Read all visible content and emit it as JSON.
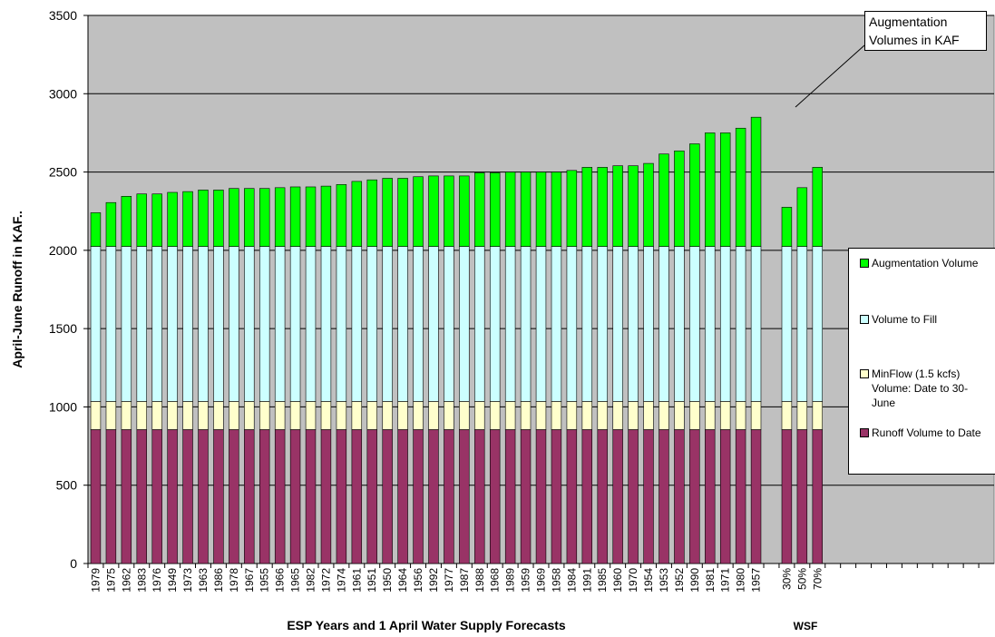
{
  "chart_data": {
    "type": "stacked_bar",
    "y_label": "April-June Runoff in KAF..",
    "x_label": "ESP Years and 1 April Water Supply Forecasts",
    "x_label_2": "WSF",
    "annotation": "Augmentation Volumes in KAF",
    "categories": [
      "1979",
      "1975",
      "1962",
      "1983",
      "1976",
      "1949",
      "1973",
      "1963",
      "1986",
      "1978",
      "1967",
      "1955",
      "1966",
      "1965",
      "1982",
      "1972",
      "1974",
      "1961",
      "1951",
      "1950",
      "1964",
      "1956",
      "1992",
      "1977",
      "1987",
      "1988",
      "1968",
      "1989",
      "1959",
      "1969",
      "1958",
      "1984",
      "1991",
      "1985",
      "1960",
      "1970",
      "1954",
      "1953",
      "1952",
      "1990",
      "1981",
      "1971",
      "1980",
      "1957",
      null,
      "30%",
      "50%",
      "70%",
      null,
      null,
      null,
      null,
      null,
      null,
      null,
      null,
      null,
      null,
      null
    ],
    "series": [
      {
        "name": "Runoff Volume to Date",
        "color": "#993366",
        "values": [
          855,
          855,
          855,
          855,
          855,
          855,
          855,
          855,
          855,
          855,
          855,
          855,
          855,
          855,
          855,
          855,
          855,
          855,
          855,
          855,
          855,
          855,
          855,
          855,
          855,
          855,
          855,
          855,
          855,
          855,
          855,
          855,
          855,
          855,
          855,
          855,
          855,
          855,
          855,
          855,
          855,
          855,
          855,
          855,
          null,
          855,
          855,
          855,
          null,
          null,
          null,
          null,
          null,
          null,
          null,
          null,
          null,
          null,
          null
        ]
      },
      {
        "name": "MinFlow (1.5 kcfs) Volume: Date to 30-June",
        "color": "#ffffcc",
        "values": [
          180,
          180,
          180,
          180,
          180,
          180,
          180,
          180,
          180,
          180,
          180,
          180,
          180,
          180,
          180,
          180,
          180,
          180,
          180,
          180,
          180,
          180,
          180,
          180,
          180,
          180,
          180,
          180,
          180,
          180,
          180,
          180,
          180,
          180,
          180,
          180,
          180,
          180,
          180,
          180,
          180,
          180,
          180,
          180,
          null,
          180,
          180,
          180,
          null,
          null,
          null,
          null,
          null,
          null,
          null,
          null,
          null,
          null,
          null
        ]
      },
      {
        "name": "Volume to Fill",
        "color": "#ccffff",
        "values": [
          990,
          990,
          990,
          990,
          990,
          990,
          990,
          990,
          990,
          990,
          990,
          990,
          990,
          990,
          990,
          990,
          990,
          990,
          990,
          990,
          990,
          990,
          990,
          990,
          990,
          990,
          990,
          990,
          990,
          990,
          990,
          990,
          990,
          990,
          990,
          990,
          990,
          990,
          990,
          990,
          990,
          990,
          990,
          990,
          null,
          990,
          990,
          990,
          null,
          null,
          null,
          null,
          null,
          null,
          null,
          null,
          null,
          null,
          null
        ]
      },
      {
        "name": "Augmentation Volume",
        "color": "#00ff00",
        "values": [
          215,
          280,
          320,
          335,
          335,
          345,
          350,
          360,
          360,
          370,
          370,
          370,
          375,
          380,
          380,
          385,
          395,
          415,
          425,
          435,
          435,
          445,
          450,
          450,
          450,
          470,
          470,
          475,
          475,
          475,
          475,
          485,
          505,
          505,
          515,
          515,
          530,
          590,
          610,
          655,
          725,
          725,
          755,
          825,
          null,
          250,
          375,
          505,
          null,
          null,
          null,
          null,
          null,
          null,
          null,
          null,
          null,
          null,
          null
        ]
      }
    ],
    "ylim": [
      0,
      3500
    ],
    "yticks": [
      0,
      500,
      1000,
      1500,
      2000,
      2500,
      3000,
      3500
    ],
    "grid": true,
    "plot_background": "#c0c0c0",
    "legend": "right"
  }
}
